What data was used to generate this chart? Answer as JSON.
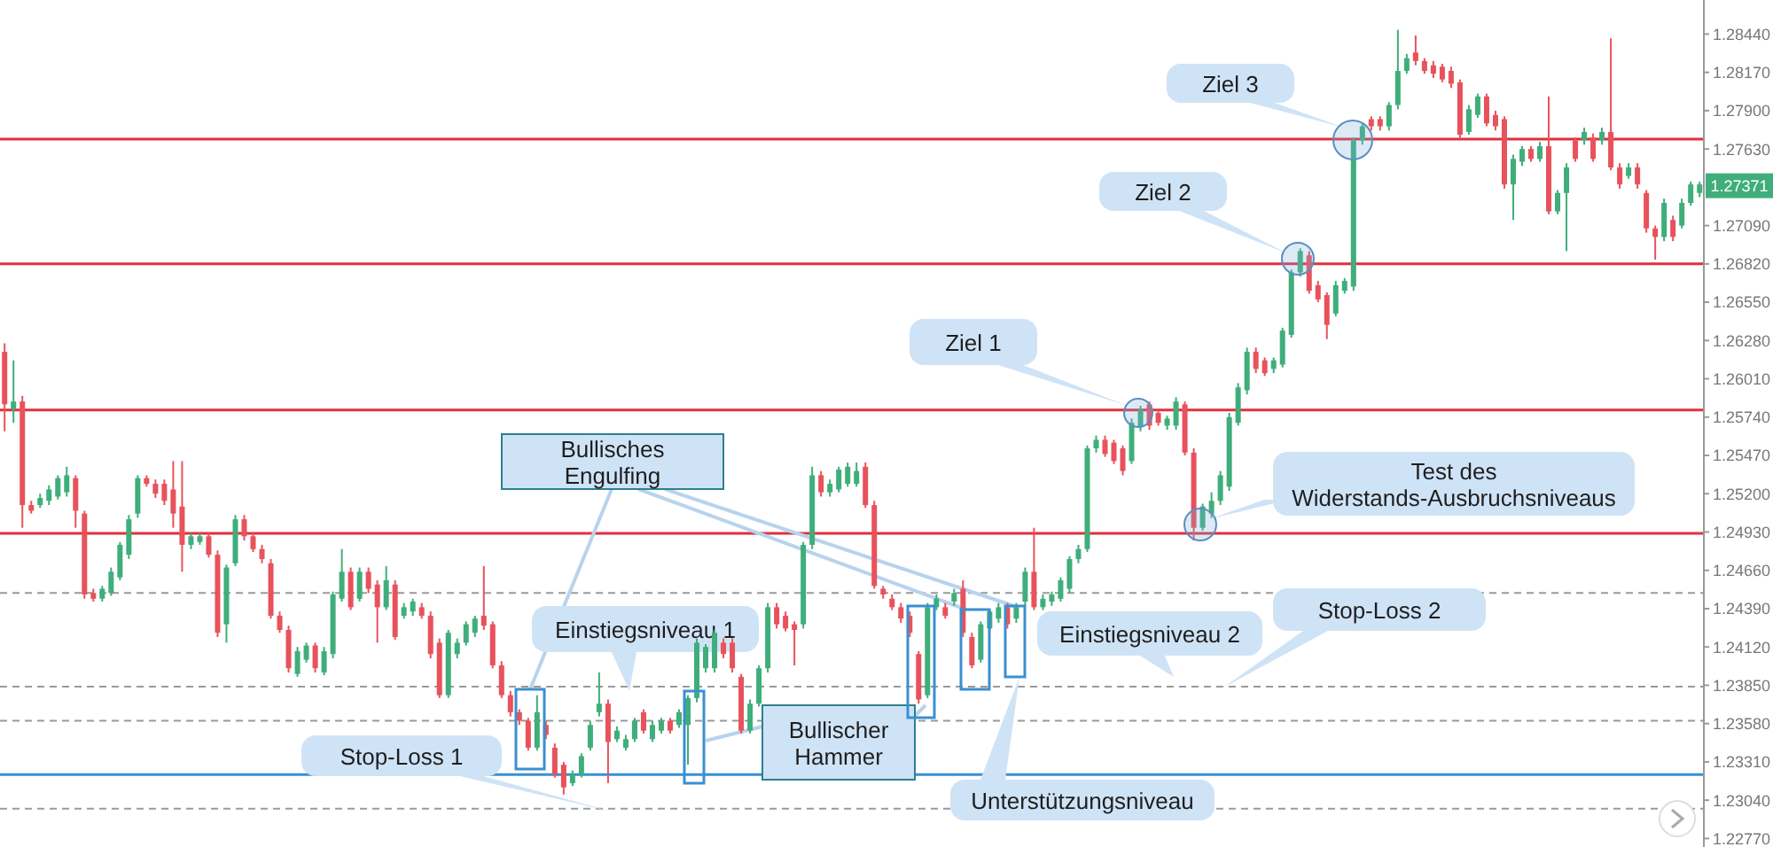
{
  "chart_data": {
    "type": "candlestick",
    "categories": [
      null,
      null,
      null,
      null,
      null,
      null,
      null,
      null,
      null,
      null,
      null,
      null,
      null,
      null,
      null,
      null,
      null,
      null,
      null,
      null,
      null,
      null,
      null,
      null,
      null,
      null,
      null,
      null,
      null,
      null,
      null,
      null,
      null,
      null,
      null,
      null,
      null,
      null,
      null,
      null,
      null,
      null,
      null,
      null,
      null,
      null,
      null,
      null,
      null,
      null,
      null,
      null,
      null,
      null,
      null,
      null,
      null,
      null,
      null,
      null,
      null,
      null,
      null,
      null,
      null,
      null,
      null,
      null,
      null,
      null,
      null,
      null,
      null,
      null,
      null,
      null,
      null,
      null,
      null,
      null,
      null,
      null,
      null,
      null,
      null,
      null,
      null,
      null,
      null,
      null,
      null,
      null,
      null,
      null,
      null,
      null,
      null,
      null,
      null,
      null,
      null,
      null,
      null,
      null,
      null,
      null,
      null,
      null,
      null,
      null,
      null,
      null,
      null,
      null,
      null,
      null,
      null,
      null,
      null,
      null,
      null,
      null,
      null,
      null,
      null,
      null,
      null,
      null,
      null,
      null,
      null,
      null,
      null,
      null,
      null,
      null,
      null,
      null,
      null,
      null,
      null,
      null,
      null,
      null,
      null,
      null,
      null,
      null,
      null,
      null,
      null,
      null,
      null,
      null,
      null,
      null,
      null,
      null,
      null,
      null,
      null,
      null,
      null,
      null,
      null,
      null,
      null,
      null,
      null,
      null,
      null,
      null,
      null,
      null,
      null,
      null,
      null,
      null,
      null,
      null,
      null,
      null,
      null,
      null,
      null,
      null,
      null,
      null,
      null,
      null,
      null,
      null
    ],
    "ohlc": [
      [
        1.262,
        1.2626,
        1.2564,
        1.2583
      ],
      [
        1.258,
        1.2614,
        1.257,
        1.2585
      ],
      [
        1.2585,
        1.2589,
        1.2496,
        1.2512
      ],
      [
        1.2512,
        1.2515,
        1.2506,
        1.2508
      ],
      [
        1.2512,
        1.252,
        1.251,
        1.2517
      ],
      [
        1.2515,
        1.2526,
        1.2512,
        1.2523
      ],
      [
        1.2518,
        1.2533,
        1.2516,
        1.2531
      ],
      [
        1.2521,
        1.2539,
        1.2518,
        1.2533
      ],
      [
        1.2531,
        1.2533,
        1.2496,
        1.2508
      ],
      [
        1.2506,
        1.2508,
        1.2446,
        1.2449
      ],
      [
        1.245,
        1.2453,
        1.2444,
        1.2446
      ],
      [
        1.2446,
        1.2455,
        1.2444,
        1.2453
      ],
      [
        1.245,
        1.2468,
        1.2448,
        1.2465
      ],
      [
        1.2461,
        1.2486,
        1.2459,
        1.2484
      ],
      [
        1.2477,
        1.2505,
        1.2474,
        1.2502
      ],
      [
        1.2506,
        1.2533,
        1.2503,
        1.2531
      ],
      [
        1.2531,
        1.2533,
        1.2525,
        1.2527
      ],
      [
        1.2527,
        1.253,
        1.2517,
        1.252
      ],
      [
        1.2527,
        1.253,
        1.2512,
        1.2515
      ],
      [
        1.2523,
        1.2543,
        1.2496,
        1.2506
      ],
      [
        1.2511,
        1.2543,
        1.2465,
        1.2484
      ],
      [
        1.2484,
        1.2492,
        1.2481,
        1.249
      ],
      [
        1.2486,
        1.2492,
        1.2484,
        1.249
      ],
      [
        1.249,
        1.2492,
        1.2475,
        1.2477
      ],
      [
        1.2477,
        1.248,
        1.2419,
        1.2422
      ],
      [
        1.2428,
        1.247,
        1.2415,
        1.2468
      ],
      [
        1.2471,
        1.2505,
        1.2469,
        1.2502
      ],
      [
        1.2502,
        1.2505,
        1.2487,
        1.249
      ],
      [
        1.249,
        1.2492,
        1.2479,
        1.2481
      ],
      [
        1.2481,
        1.2484,
        1.2471,
        1.2474
      ],
      [
        1.2471,
        1.2474,
        1.2432,
        1.2434
      ],
      [
        1.2434,
        1.2437,
        1.2422,
        1.2424
      ],
      [
        1.2424,
        1.2427,
        1.2394,
        1.2397
      ],
      [
        1.2393,
        1.2412,
        1.2391,
        1.2409
      ],
      [
        1.2403,
        1.2415,
        1.2401,
        1.2413
      ],
      [
        1.2413,
        1.2415,
        1.2394,
        1.2397
      ],
      [
        1.2394,
        1.2412,
        1.2392,
        1.2409
      ],
      [
        1.2407,
        1.2451,
        1.2404,
        1.2449
      ],
      [
        1.2446,
        1.2481,
        1.2444,
        1.2465
      ],
      [
        1.2465,
        1.2468,
        1.2438,
        1.244
      ],
      [
        1.2446,
        1.2468,
        1.2444,
        1.2465
      ],
      [
        1.2465,
        1.2468,
        1.245,
        1.2453
      ],
      [
        1.2456,
        1.2459,
        1.2415,
        1.244
      ],
      [
        1.244,
        1.2469,
        1.2438,
        1.2459
      ],
      [
        1.2456,
        1.2459,
        1.2417,
        1.2419
      ],
      [
        1.2434,
        1.2443,
        1.2432,
        1.244
      ],
      [
        1.2437,
        1.2446,
        1.2434,
        1.2444
      ],
      [
        1.244,
        1.2443,
        1.2432,
        1.2434
      ],
      [
        1.2434,
        1.2437,
        1.2404,
        1.2407
      ],
      [
        1.2415,
        1.2418,
        1.2376,
        1.2378
      ],
      [
        1.2378,
        1.2424,
        1.2376,
        1.2422
      ],
      [
        1.2407,
        1.2418,
        1.2404,
        1.2415
      ],
      [
        1.2415,
        1.243,
        1.2413,
        1.2428
      ],
      [
        1.2422,
        1.2434,
        1.2419,
        1.2432
      ],
      [
        1.2434,
        1.2469,
        1.2424,
        1.2427
      ],
      [
        1.2428,
        1.243,
        1.2397,
        1.2399
      ],
      [
        1.2399,
        1.2402,
        1.2376,
        1.2378
      ],
      [
        1.2378,
        1.2381,
        1.2363,
        1.2366
      ],
      [
        1.2366,
        1.2368,
        1.2357,
        1.236
      ],
      [
        1.236,
        1.2362,
        1.2339,
        1.2341
      ],
      [
        1.2341,
        1.2378,
        1.2339,
        1.2366
      ],
      [
        1.2357,
        1.236,
        1.2347,
        1.235
      ],
      [
        1.2341,
        1.2344,
        1.232,
        1.2322
      ],
      [
        1.2329,
        1.2331,
        1.2308,
        1.2313
      ],
      [
        1.2316,
        1.2325,
        1.2314,
        1.2322
      ],
      [
        1.2322,
        1.2337,
        1.232,
        1.2335
      ],
      [
        1.2341,
        1.236,
        1.2339,
        1.2357
      ],
      [
        1.2366,
        1.2394,
        1.2363,
        1.2372
      ],
      [
        1.2372,
        1.2375,
        1.2316,
        1.2345
      ],
      [
        1.2347,
        1.2356,
        1.2345,
        1.2353
      ],
      [
        1.2341,
        1.235,
        1.2339,
        1.2347
      ],
      [
        1.2347,
        1.2362,
        1.2345,
        1.236
      ],
      [
        1.2366,
        1.2368,
        1.2351,
        1.2353
      ],
      [
        1.2347,
        1.236,
        1.2345,
        1.2357
      ],
      [
        1.2353,
        1.2362,
        1.2351,
        1.236
      ],
      [
        1.236,
        1.2362,
        1.2351,
        1.2353
      ],
      [
        1.2357,
        1.2368,
        1.2355,
        1.2366
      ],
      [
        1.2357,
        1.2378,
        1.2329,
        1.2376
      ],
      [
        1.2376,
        1.2418,
        1.2373,
        1.2415
      ],
      [
        1.2397,
        1.2414,
        1.2394,
        1.2412
      ],
      [
        1.2397,
        1.2424,
        1.2394,
        1.2422
      ],
      [
        1.2415,
        1.2418,
        1.2404,
        1.2407
      ],
      [
        1.2415,
        1.2418,
        1.2394,
        1.2397
      ],
      [
        1.2391,
        1.2393,
        1.2351,
        1.2353
      ],
      [
        1.2353,
        1.2375,
        1.2351,
        1.2372
      ],
      [
        1.2372,
        1.2399,
        1.237,
        1.2397
      ],
      [
        1.2397,
        1.2443,
        1.2394,
        1.244
      ],
      [
        1.244,
        1.2443,
        1.2425,
        1.2428
      ],
      [
        1.2434,
        1.2437,
        1.2423,
        1.2425
      ],
      [
        1.2428,
        1.243,
        1.2399,
        1.2424
      ],
      [
        1.2428,
        1.2486,
        1.2425,
        1.2484
      ],
      [
        1.2484,
        1.2539,
        1.2481,
        1.2533
      ],
      [
        1.2533,
        1.2536,
        1.2518,
        1.2521
      ],
      [
        1.2521,
        1.253,
        1.2518,
        1.2527
      ],
      [
        1.2523,
        1.2539,
        1.2521,
        1.2537
      ],
      [
        1.2527,
        1.2542,
        1.2525,
        1.2539
      ],
      [
        1.2527,
        1.2542,
        1.2525,
        1.2536
      ],
      [
        1.2539,
        1.2542,
        1.251,
        1.2512
      ],
      [
        1.2512,
        1.2515,
        1.2453,
        1.2455
      ],
      [
        1.2453,
        1.2455,
        1.2446,
        1.2449
      ],
      [
        1.2446,
        1.2449,
        1.2438,
        1.244
      ],
      [
        1.244,
        1.2443,
        1.2429,
        1.2432
      ],
      [
        1.2434,
        1.2437,
        1.2419,
        1.2422
      ],
      [
        1.2407,
        1.2409,
        1.2372,
        1.2375
      ],
      [
        1.2378,
        1.2443,
        1.2376,
        1.244
      ],
      [
        1.244,
        1.2449,
        1.2438,
        1.2446
      ],
      [
        1.244,
        1.2443,
        1.2432,
        1.2434
      ],
      [
        1.2444,
        1.2453,
        1.2441,
        1.245
      ],
      [
        1.2453,
        1.2459,
        1.2419,
        1.2422
      ],
      [
        1.2419,
        1.2422,
        1.2397,
        1.2399
      ],
      [
        1.2403,
        1.243,
        1.2401,
        1.2428
      ],
      [
        1.2425,
        1.2439,
        1.2423,
        1.2437
      ],
      [
        1.2432,
        1.2443,
        1.2429,
        1.244
      ],
      [
        1.244,
        1.2443,
        1.2425,
        1.2428
      ],
      [
        1.2432,
        1.2443,
        1.2429,
        1.244
      ],
      [
        1.2444,
        1.2468,
        1.2441,
        1.2465
      ],
      [
        1.2465,
        1.2496,
        1.2438,
        1.244
      ],
      [
        1.244,
        1.2449,
        1.2438,
        1.2446
      ],
      [
        1.2444,
        1.2451,
        1.2441,
        1.2449
      ],
      [
        1.2446,
        1.2461,
        1.2444,
        1.2459
      ],
      [
        1.2453,
        1.2476,
        1.245,
        1.2474
      ],
      [
        1.2474,
        1.2484,
        1.2471,
        1.2481
      ],
      [
        1.2481,
        1.2554,
        1.2479,
        1.2552
      ],
      [
        1.2552,
        1.2561,
        1.2549,
        1.2558
      ],
      [
        1.2558,
        1.2561,
        1.2546,
        1.2548
      ],
      [
        1.2556,
        1.2558,
        1.2541,
        1.2543
      ],
      [
        1.2552,
        1.2554,
        1.2533,
        1.2536
      ],
      [
        1.2543,
        1.2573,
        1.2541,
        1.257
      ],
      [
        1.2567,
        1.2582,
        1.2564,
        1.2579
      ],
      [
        1.2583,
        1.2585,
        1.2565,
        1.2568
      ],
      [
        1.2577,
        1.2579,
        1.2568,
        1.257
      ],
      [
        1.2568,
        1.2575,
        1.2565,
        1.2573
      ],
      [
        1.2568,
        1.2588,
        1.2565,
        1.2585
      ],
      [
        1.2583,
        1.2585,
        1.2547,
        1.2549
      ],
      [
        1.2549,
        1.2552,
        1.2487,
        1.2496
      ],
      [
        1.2496,
        1.2513,
        1.2494,
        1.2511
      ],
      [
        1.2506,
        1.2521,
        1.2503,
        1.2515
      ],
      [
        1.2515,
        1.2536,
        1.2512,
        1.2533
      ],
      [
        1.2525,
        1.2577,
        1.2522,
        1.2574
      ],
      [
        1.257,
        1.2598,
        1.2568,
        1.2595
      ],
      [
        1.2593,
        1.2623,
        1.259,
        1.262
      ],
      [
        1.262,
        1.2623,
        1.2605,
        1.2608
      ],
      [
        1.2614,
        1.2616,
        1.2603,
        1.2605
      ],
      [
        1.2608,
        1.2616,
        1.2605,
        1.2614
      ],
      [
        1.2611,
        1.2637,
        1.2609,
        1.2635
      ],
      [
        1.2632,
        1.2678,
        1.263,
        1.2676
      ],
      [
        1.2676,
        1.2693,
        1.2673,
        1.2691
      ],
      [
        1.2688,
        1.2691,
        1.2661,
        1.2663
      ],
      [
        1.2667,
        1.267,
        1.2655,
        1.2657
      ],
      [
        1.266,
        1.2662,
        1.2629,
        1.2639
      ],
      [
        1.2647,
        1.267,
        1.2645,
        1.2667
      ],
      [
        1.2663,
        1.2672,
        1.2661,
        1.267
      ],
      [
        1.2666,
        1.2771,
        1.2663,
        1.2769
      ],
      [
        1.2769,
        1.2781,
        1.2766,
        1.2779
      ],
      [
        1.2784,
        1.2786,
        1.2776,
        1.2779
      ],
      [
        1.2784,
        1.2786,
        1.2776,
        1.2779
      ],
      [
        1.2779,
        1.2796,
        1.2776,
        1.2794
      ],
      [
        1.2794,
        1.2847,
        1.2791,
        1.2818
      ],
      [
        1.2818,
        1.283,
        1.2816,
        1.2827
      ],
      [
        1.2831,
        1.2843,
        1.2822,
        1.2825
      ],
      [
        1.2825,
        1.2827,
        1.2816,
        1.2818
      ],
      [
        1.2822,
        1.2825,
        1.2813,
        1.2816
      ],
      [
        1.2821,
        1.2823,
        1.281,
        1.2812
      ],
      [
        1.2818,
        1.2821,
        1.2806,
        1.2809
      ],
      [
        1.281,
        1.2812,
        1.277,
        1.2773
      ],
      [
        1.2775,
        1.2794,
        1.2773,
        1.2791
      ],
      [
        1.2787,
        1.2802,
        1.2785,
        1.28
      ],
      [
        1.28,
        1.2802,
        1.2779,
        1.2781
      ],
      [
        1.2787,
        1.279,
        1.2776,
        1.2779
      ],
      [
        1.2784,
        1.2786,
        1.2735,
        1.2738
      ],
      [
        1.2738,
        1.2759,
        1.2713,
        1.2756
      ],
      [
        1.2754,
        1.2765,
        1.2751,
        1.2763
      ],
      [
        1.2763,
        1.2765,
        1.2754,
        1.2756
      ],
      [
        1.2756,
        1.2768,
        1.2754,
        1.2765
      ],
      [
        1.2765,
        1.28,
        1.2717,
        1.2719
      ],
      [
        1.2719,
        1.2734,
        1.2717,
        1.2732
      ],
      [
        1.2732,
        1.2753,
        1.2691,
        1.275
      ],
      [
        1.2769,
        1.2771,
        1.2754,
        1.2756
      ],
      [
        1.2769,
        1.2778,
        1.2766,
        1.2775
      ],
      [
        1.2771,
        1.2774,
        1.2754,
        1.2756
      ],
      [
        1.2769,
        1.2778,
        1.2766,
        1.2775
      ],
      [
        1.2775,
        1.2841,
        1.2748,
        1.275
      ],
      [
        1.275,
        1.2753,
        1.2735,
        1.2738
      ],
      [
        1.2744,
        1.2753,
        1.2742,
        1.275
      ],
      [
        1.275,
        1.2753,
        1.2735,
        1.2738
      ],
      [
        1.2732,
        1.2734,
        1.2704,
        1.2707
      ],
      [
        1.2707,
        1.2709,
        1.2685,
        1.2701
      ],
      [
        1.2701,
        1.2728,
        1.2698,
        1.2725
      ],
      [
        1.2713,
        1.2716,
        1.2698,
        1.2701
      ],
      [
        1.2709,
        1.2728,
        1.2707,
        1.2725
      ],
      [
        1.2725,
        1.274,
        1.2723,
        1.2738
      ],
      [
        1.2732,
        1.274,
        1.2729,
        1.2738
      ]
    ],
    "ylim": [
      1.2271,
      1.2868
    ],
    "yticks": [
      {
        "value": 1.2277,
        "label": "1.22770"
      },
      {
        "value": 1.2304,
        "label": "1.23040"
      },
      {
        "value": 1.2331,
        "label": "1.23310"
      },
      {
        "value": 1.2358,
        "label": "1.23580"
      },
      {
        "value": 1.2385,
        "label": "1.23850"
      },
      {
        "value": 1.2412,
        "label": "1.24120"
      },
      {
        "value": 1.2439,
        "label": "1.24390"
      },
      {
        "value": 1.2466,
        "label": "1.24660"
      },
      {
        "value": 1.2493,
        "label": "1.24930"
      },
      {
        "value": 1.252,
        "label": "1.25200"
      },
      {
        "value": 1.2547,
        "label": "1.25470"
      },
      {
        "value": 1.2574,
        "label": "1.25740"
      },
      {
        "value": 1.2601,
        "label": "1.26010"
      },
      {
        "value": 1.2628,
        "label": "1.26280"
      },
      {
        "value": 1.2655,
        "label": "1.26550"
      },
      {
        "value": 1.2682,
        "label": "1.26820"
      },
      {
        "value": 1.2709,
        "label": "1.27090"
      },
      {
        "value": 1.2763,
        "label": "1.27630"
      },
      {
        "value": 1.279,
        "label": "1.27900"
      },
      {
        "value": 1.2817,
        "label": "1.28170"
      },
      {
        "value": 1.2844,
        "label": "1.28440"
      }
    ],
    "tick_labels": "y",
    "ref_lines": [
      {
        "axis": "y",
        "value": 1.277,
        "color": "#e0303f",
        "line_style": "solid"
      },
      {
        "axis": "y",
        "value": 1.2682,
        "color": "#e0303f",
        "line_style": "solid"
      },
      {
        "axis": "y",
        "value": 1.2579,
        "color": "#e0303f",
        "line_style": "solid"
      },
      {
        "axis": "y",
        "value": 1.2492,
        "color": "#e0303f",
        "line_style": "solid"
      },
      {
        "axis": "y",
        "value": 1.2322,
        "color": "#3a8fd0",
        "line_style": "solid"
      },
      {
        "axis": "y",
        "value": 1.245,
        "color": "#9a9a9a",
        "line_style": "dashed"
      },
      {
        "axis": "y",
        "value": 1.2384,
        "color": "#9a9a9a",
        "line_style": "dashed"
      },
      {
        "axis": "y",
        "value": 1.236,
        "color": "#9a9a9a",
        "line_style": "dashed"
      },
      {
        "axis": "y",
        "value": 1.2298,
        "color": "#9a9a9a",
        "line_style": "dashed"
      }
    ],
    "annotations": [
      "Ziel 3",
      "Ziel 2",
      "Ziel 1",
      "Bullisches Engulfing",
      "Einstiegsniveau 1",
      "Bullischer Hammer",
      "Stop-Loss 1",
      "Unterstützungsniveau",
      "Einstiegsniveau 2",
      "Stop-Loss 2",
      "Test des Widerstands-Ausbruchsniveaus",
      {
        "text": "1.27371",
        "y": 1.27371
      }
    ]
  }
}
